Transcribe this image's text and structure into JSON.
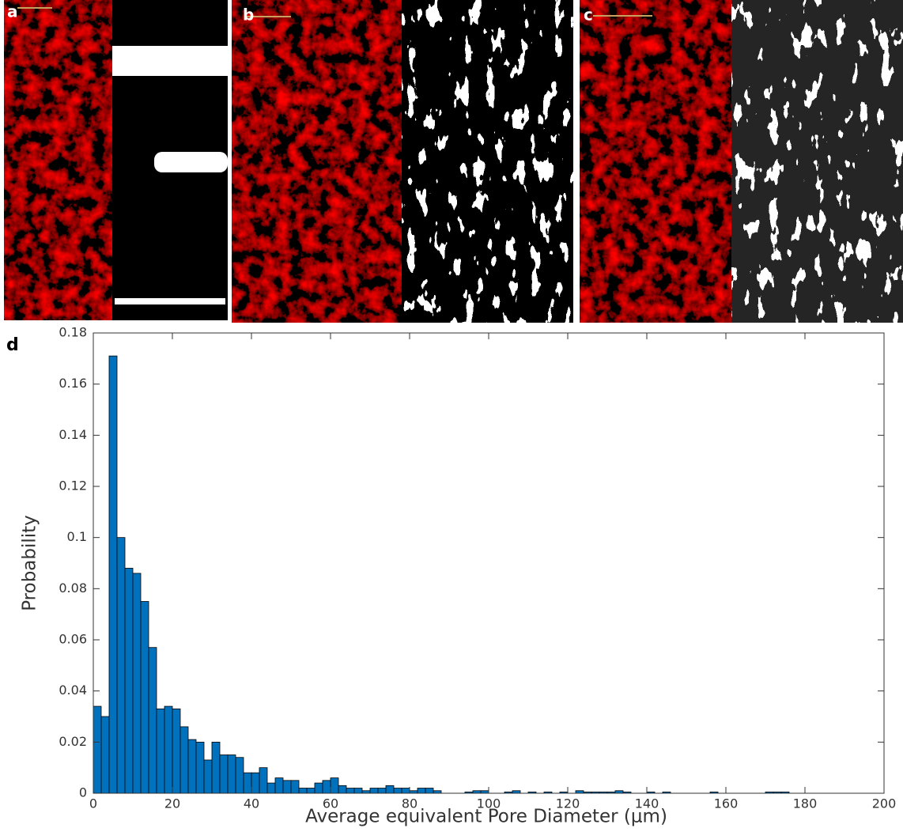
{
  "panels": {
    "labels": [
      "a",
      "b",
      "c"
    ]
  },
  "chart_data": {
    "type": "histogram",
    "panel_label": "d",
    "xlabel": "Average equivalent Pore Diameter (μm)",
    "ylabel": "Probability",
    "color": "#0072BD",
    "edgecolor": "#000000",
    "bins": [
      0,
      2,
      4,
      6,
      8,
      10,
      12,
      14,
      16,
      18,
      20,
      22,
      24,
      26,
      28,
      30,
      32,
      34,
      36,
      38,
      40,
      42,
      44,
      46,
      48,
      50,
      52,
      54,
      56,
      58,
      60,
      62,
      64,
      66,
      68,
      70,
      72,
      74,
      76,
      78,
      80,
      82,
      84,
      86,
      88,
      90,
      92,
      94,
      96,
      98,
      100,
      102,
      104,
      106,
      108,
      110,
      112,
      114,
      116,
      118,
      120,
      122,
      124,
      126,
      128,
      130,
      132,
      134,
      136,
      138,
      140,
      142,
      144,
      146,
      148,
      150,
      152,
      154,
      156,
      158,
      160,
      162,
      164,
      166,
      168,
      170,
      172,
      174,
      176
    ],
    "values": [
      0.034,
      0.03,
      0.171,
      0.1,
      0.088,
      0.086,
      0.075,
      0.057,
      0.033,
      0.034,
      0.033,
      0.026,
      0.021,
      0.02,
      0.013,
      0.02,
      0.015,
      0.015,
      0.014,
      0.008,
      0.008,
      0.01,
      0.004,
      0.006,
      0.005,
      0.005,
      0.002,
      0.002,
      0.004,
      0.005,
      0.006,
      0.003,
      0.002,
      0.002,
      0.001,
      0.002,
      0.002,
      0.003,
      0.002,
      0.002,
      0.001,
      0.002,
      0.002,
      0.001,
      0,
      0,
      0,
      0.0005,
      0.001,
      0.001,
      0,
      0,
      0.0005,
      0.001,
      0,
      0.0005,
      0,
      0.0005,
      0,
      0.0005,
      0,
      0.001,
      0.0005,
      0.0005,
      0.0005,
      0.0005,
      0.001,
      0.0005,
      0,
      0,
      0.0005,
      0,
      0.0005,
      0,
      0,
      0,
      0,
      0,
      0.0005,
      0,
      0,
      0,
      0,
      0,
      0,
      0.0005,
      0.0005,
      0.0005
    ],
    "xlim": [
      0,
      200
    ],
    "xticks": [
      0,
      20,
      40,
      60,
      80,
      100,
      120,
      140,
      160,
      180,
      200
    ],
    "ylim": [
      0,
      0.18
    ],
    "yticks": [
      0,
      0.02,
      0.04,
      0.06,
      0.08,
      0.1,
      0.12,
      0.14,
      0.16,
      0.18
    ]
  }
}
